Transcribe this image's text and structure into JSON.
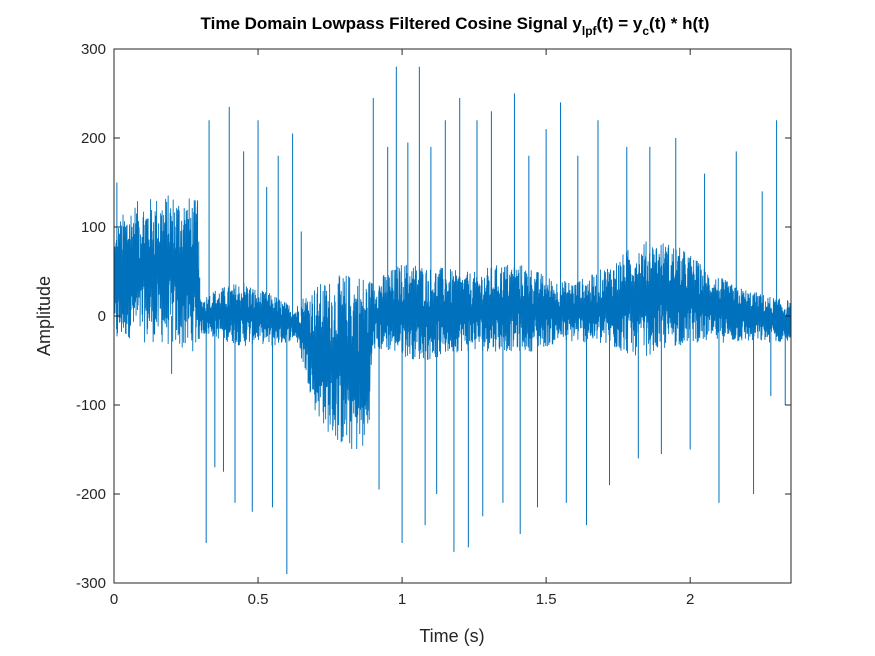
{
  "chart_data": {
    "type": "line",
    "title": {
      "main": "Time Domain Lowpass Filtered Cosine Signal y",
      "sub1": "lpf",
      "mid": "(t) = y",
      "sub2": "c",
      "end": "(t) * h(t)"
    },
    "xlabel": "Time (s)",
    "ylabel": "Amplitude",
    "xlim": [
      0,
      2.35
    ],
    "ylim": [
      -300,
      300
    ],
    "xticks": [
      0,
      0.5,
      1,
      1.5,
      2
    ],
    "xtick_labels": [
      "0",
      "0.5",
      "1",
      "1.5",
      "2"
    ],
    "yticks": [
      300,
      200,
      100,
      0,
      -100,
      -200,
      -300
    ],
    "ytick_labels": [
      "300",
      "200",
      "100",
      "0",
      "-100",
      "-200",
      "-300"
    ],
    "grid": false,
    "line_color": "#0072BD",
    "series": [
      {
        "envelope": {
          "x": [
            0.0,
            0.02,
            0.05,
            0.1,
            0.15,
            0.2,
            0.25,
            0.29,
            0.3,
            0.35,
            0.4,
            0.45,
            0.5,
            0.55,
            0.6,
            0.63,
            0.66,
            0.7,
            0.75,
            0.8,
            0.85,
            0.88,
            0.9,
            0.95,
            1.0,
            1.05,
            1.1,
            1.15,
            1.2,
            1.25,
            1.3,
            1.35,
            1.4,
            1.45,
            1.5,
            1.55,
            1.6,
            1.65,
            1.7,
            1.75,
            1.8,
            1.85,
            1.9,
            1.95,
            2.0,
            2.05,
            2.1,
            2.15,
            2.2,
            2.25,
            2.3,
            2.35
          ],
          "upper": [
            95,
            110,
            125,
            132,
            135,
            138,
            136,
            130,
            20,
            30,
            35,
            40,
            30,
            25,
            15,
            10,
            25,
            35,
            42,
            48,
            50,
            45,
            40,
            50,
            60,
            60,
            55,
            55,
            50,
            50,
            55,
            60,
            60,
            55,
            45,
            40,
            40,
            45,
            55,
            65,
            80,
            85,
            85,
            80,
            70,
            55,
            45,
            35,
            30,
            25,
            20,
            18
          ],
          "lower": [
            -40,
            -30,
            -25,
            -30,
            -30,
            -35,
            -40,
            -40,
            -20,
            -25,
            -30,
            -35,
            -30,
            -35,
            -30,
            -25,
            -60,
            -110,
            -135,
            -150,
            -155,
            -150,
            -40,
            -40,
            -45,
            -50,
            -50,
            -45,
            -40,
            -40,
            -40,
            -40,
            -40,
            -40,
            -35,
            -30,
            -30,
            -30,
            -35,
            -40,
            -45,
            -45,
            -40,
            -35,
            -30,
            -30,
            -30,
            -30,
            -30,
            -30,
            -30,
            -30
          ]
        },
        "spikes": [
          {
            "x": 0.0,
            "y": -140
          },
          {
            "x": 0.01,
            "y": 150
          },
          {
            "x": 0.2,
            "y": -65
          },
          {
            "x": 0.29,
            "y": 130
          },
          {
            "x": 0.32,
            "y": -255
          },
          {
            "x": 0.33,
            "y": 220
          },
          {
            "x": 0.35,
            "y": -170
          },
          {
            "x": 0.38,
            "y": -175
          },
          {
            "x": 0.4,
            "y": 235
          },
          {
            "x": 0.42,
            "y": -210
          },
          {
            "x": 0.45,
            "y": 185
          },
          {
            "x": 0.48,
            "y": -220
          },
          {
            "x": 0.5,
            "y": 220
          },
          {
            "x": 0.53,
            "y": 145
          },
          {
            "x": 0.55,
            "y": -215
          },
          {
            "x": 0.57,
            "y": 180
          },
          {
            "x": 0.6,
            "y": -290
          },
          {
            "x": 0.62,
            "y": 205
          },
          {
            "x": 0.65,
            "y": 95
          },
          {
            "x": 0.9,
            "y": 245
          },
          {
            "x": 0.92,
            "y": -195
          },
          {
            "x": 0.95,
            "y": 190
          },
          {
            "x": 0.98,
            "y": 280
          },
          {
            "x": 1.0,
            "y": -255
          },
          {
            "x": 1.02,
            "y": 195
          },
          {
            "x": 1.06,
            "y": 280
          },
          {
            "x": 1.08,
            "y": -235
          },
          {
            "x": 1.1,
            "y": 190
          },
          {
            "x": 1.12,
            "y": -200
          },
          {
            "x": 1.15,
            "y": 220
          },
          {
            "x": 1.18,
            "y": -265
          },
          {
            "x": 1.2,
            "y": 245
          },
          {
            "x": 1.23,
            "y": -260
          },
          {
            "x": 1.26,
            "y": 220
          },
          {
            "x": 1.28,
            "y": -225
          },
          {
            "x": 1.31,
            "y": 230
          },
          {
            "x": 1.35,
            "y": -210
          },
          {
            "x": 1.39,
            "y": 250
          },
          {
            "x": 1.41,
            "y": -245
          },
          {
            "x": 1.44,
            "y": 180
          },
          {
            "x": 1.47,
            "y": -215
          },
          {
            "x": 1.5,
            "y": 210
          },
          {
            "x": 1.55,
            "y": 240
          },
          {
            "x": 1.57,
            "y": -210
          },
          {
            "x": 1.61,
            "y": 180
          },
          {
            "x": 1.64,
            "y": -235
          },
          {
            "x": 1.68,
            "y": 220
          },
          {
            "x": 1.72,
            "y": -190
          },
          {
            "x": 1.78,
            "y": 190
          },
          {
            "x": 1.82,
            "y": -160
          },
          {
            "x": 1.86,
            "y": 190
          },
          {
            "x": 1.9,
            "y": -155
          },
          {
            "x": 1.95,
            "y": 200
          },
          {
            "x": 2.0,
            "y": -150
          },
          {
            "x": 2.05,
            "y": 160
          },
          {
            "x": 2.1,
            "y": -210
          },
          {
            "x": 2.16,
            "y": 185
          },
          {
            "x": 2.22,
            "y": -200
          },
          {
            "x": 2.25,
            "y": 140
          },
          {
            "x": 2.28,
            "y": -90
          },
          {
            "x": 2.3,
            "y": 220
          },
          {
            "x": 2.33,
            "y": -100
          }
        ]
      }
    ]
  }
}
